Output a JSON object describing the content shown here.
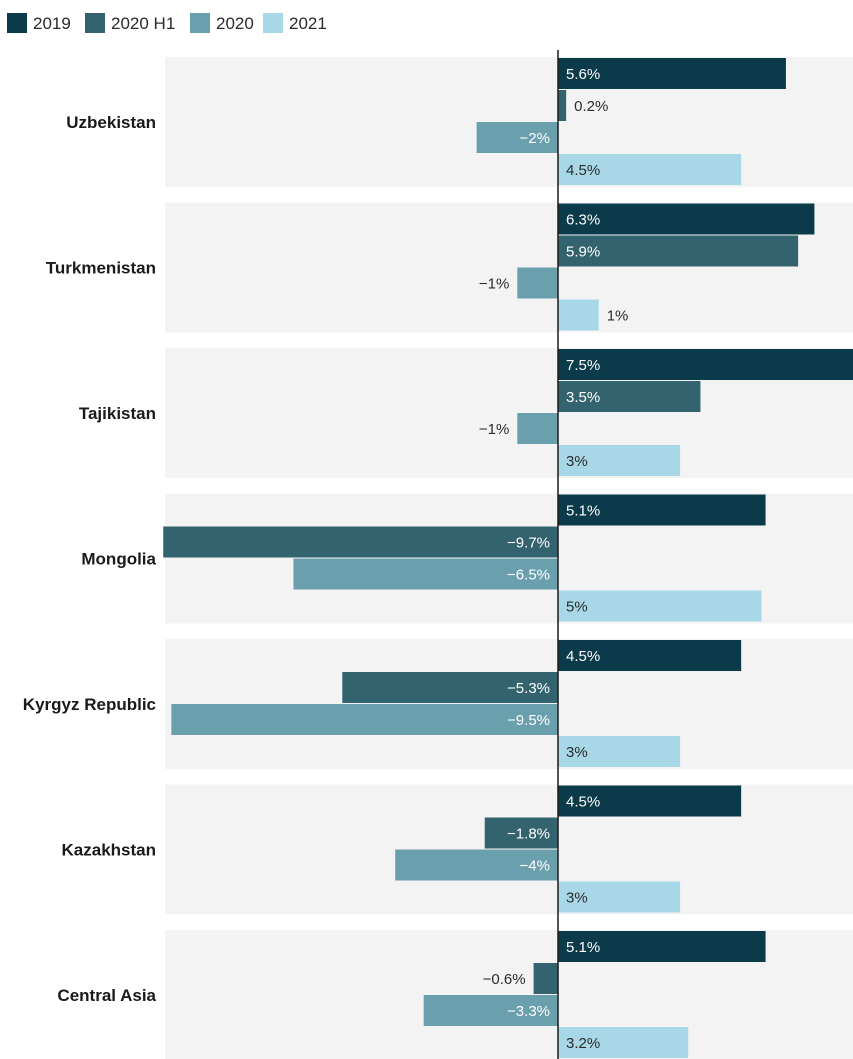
{
  "chart_data": {
    "type": "bar",
    "orientation": "horizontal",
    "categories": [
      "Uzbekistan",
      "Turkmenistan",
      "Tajikistan",
      "Mongolia",
      "Kyrgyz Republic",
      "Kazakhstan",
      "Central Asia"
    ],
    "series": [
      {
        "name": "2019",
        "color": "#0b3b4a",
        "values": [
          5.6,
          6.3,
          7.5,
          5.1,
          4.5,
          4.5,
          5.1
        ],
        "labels": [
          "5.6%",
          "6.3%",
          "7.5%",
          "5.1%",
          "4.5%",
          "4.5%",
          "5.1%"
        ]
      },
      {
        "name": "2020 H1",
        "color": "#33636f",
        "values": [
          0.2,
          5.9,
          3.5,
          -9.7,
          -5.3,
          -1.8,
          -0.6
        ],
        "labels": [
          "0.2%",
          "5.9%",
          "3.5%",
          "−9.7%",
          "−5.3%",
          "−1.8%",
          "−0.6%"
        ]
      },
      {
        "name": "2020",
        "color": "#6a9fae",
        "values": [
          -2,
          -1,
          -1,
          -6.5,
          -9.5,
          -4,
          -3.3
        ],
        "labels": [
          "−2%",
          "−1%",
          "−1%",
          "−6.5%",
          "−9.5%",
          "−4%",
          "−3.3%"
        ]
      },
      {
        "name": "2021",
        "color": "#a8d8e8",
        "values": [
          4.5,
          1,
          3,
          5,
          3,
          3,
          3.2
        ],
        "labels": [
          "4.5%",
          "1%",
          "3%",
          "5%",
          "3%",
          "3%",
          "3.2%"
        ]
      }
    ],
    "xlim": [
      -9.7,
      7.2
    ],
    "legend": "top-left",
    "grid": false
  }
}
